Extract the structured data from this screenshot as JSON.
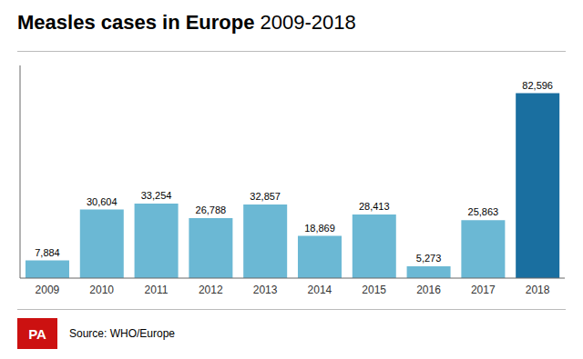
{
  "chart_data": {
    "type": "bar",
    "title": "Measles cases in Europe",
    "subtitle": "2009-2018",
    "categories": [
      "2009",
      "2010",
      "2011",
      "2012",
      "2013",
      "2014",
      "2015",
      "2016",
      "2017",
      "2018"
    ],
    "values": [
      7884,
      30604,
      33254,
      26788,
      32857,
      18869,
      28413,
      5273,
      25863,
      82596
    ],
    "value_labels": [
      "7,884",
      "30,604",
      "33,254",
      "26,788",
      "32,857",
      "18,869",
      "28,413",
      "5,273",
      "25,863",
      "82,596"
    ],
    "data_labels": true,
    "colors": [
      "#6bb8d4",
      "#6bb8d4",
      "#6bb8d4",
      "#6bb8d4",
      "#6bb8d4",
      "#6bb8d4",
      "#6bb8d4",
      "#6bb8d4",
      "#6bb8d4",
      "#1a6fa0"
    ],
    "ylim": [
      0,
      95000
    ],
    "tick_labels": "x",
    "grid": false,
    "annotations": [
      "PA",
      "Source: WHO/Europe"
    ]
  }
}
